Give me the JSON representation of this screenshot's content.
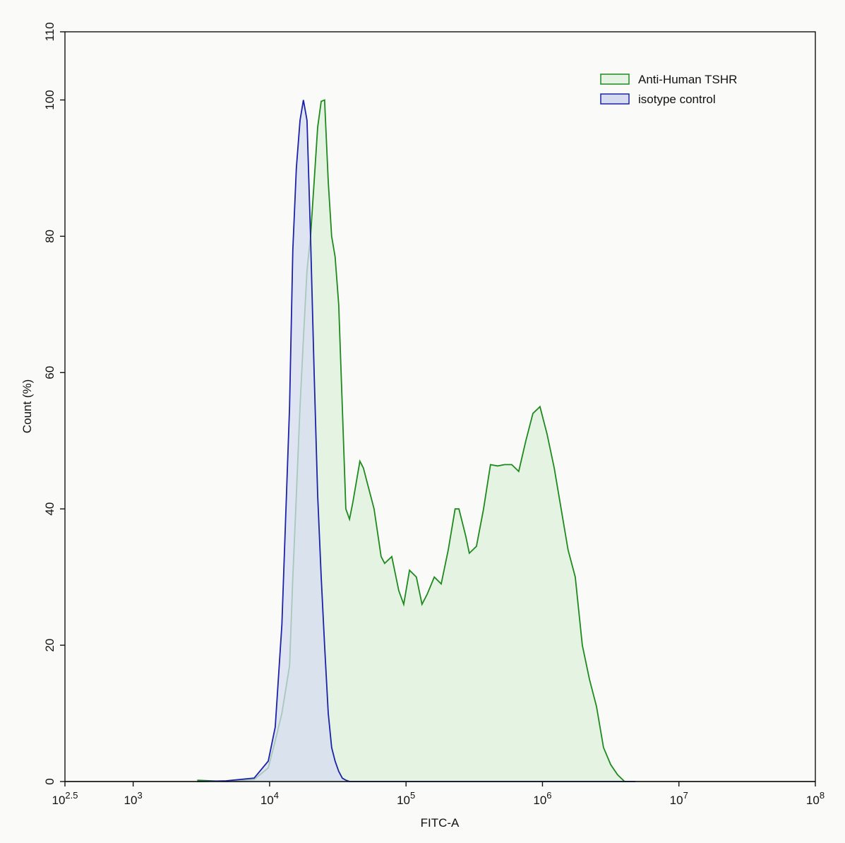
{
  "chart_data": {
    "type": "histogram-overlay",
    "x_label": "FITC-A",
    "y_label": "Count  (%)",
    "xscale": "log",
    "xlim": [
      316.23,
      100000000
    ],
    "xticks": [
      {
        "value": 316.23,
        "label": "10",
        "sup": "2.5"
      },
      {
        "value": 1000,
        "label": "10",
        "sup": "3"
      },
      {
        "value": 10000,
        "label": "10",
        "sup": "4"
      },
      {
        "value": 100000,
        "label": "10",
        "sup": "5"
      },
      {
        "value": 1000000,
        "label": "10",
        "sup": "6"
      },
      {
        "value": 10000000,
        "label": "10",
        "sup": "7"
      },
      {
        "value": 100000000,
        "label": "10",
        "sup": "8"
      }
    ],
    "ylim": [
      0,
      110
    ],
    "yticks": [
      0,
      20,
      40,
      60,
      80,
      100,
      110
    ],
    "legend": "top-right",
    "x": [
      2950,
      4800,
      7700,
      9770,
      11000,
      12300,
      14000,
      14800,
      15700,
      16700,
      17700,
      18800,
      19950,
      21200,
      22500,
      23900,
      25300,
      26900,
      28500,
      30200,
      32100,
      34100,
      36200,
      38500,
      40800,
      45900,
      48700,
      51700,
      58300,
      65700,
      69700,
      78600,
      88500,
      96200,
      106000,
      119000,
      131000,
      143000,
      161000,
      181000,
      204000,
      229000,
      244000,
      274000,
      291000,
      328000,
      370000,
      416000,
      469000,
      528000,
      595000,
      670000,
      755000,
      851000,
      959000,
      1080000,
      1220000,
      1370000,
      1540000,
      1740000,
      1960000,
      2210000,
      2490000,
      2800000,
      3160000,
      3550000,
      4000000,
      4790000
    ],
    "series": [
      {
        "name": "Anti-Human TSHR",
        "color": "#1e8a1e",
        "fill": "#e4f3e2",
        "values": [
          0.2,
          0,
          0.3,
          2,
          6,
          10,
          17,
          30,
          42,
          55,
          65,
          75,
          80,
          88,
          96,
          99.8,
          100,
          88,
          80,
          77,
          70,
          55,
          40,
          38.5,
          41,
          47,
          46,
          44,
          40,
          33,
          32,
          33,
          28,
          26,
          31,
          30,
          26,
          27.5,
          30,
          29,
          34,
          40,
          40,
          36,
          33.5,
          34.5,
          40,
          46.5,
          46.3,
          46.5,
          46.5,
          45.5,
          50,
          54,
          55,
          51,
          46,
          40,
          34,
          30,
          20,
          15,
          11,
          5,
          2.5,
          1,
          0,
          0
        ]
      },
      {
        "name": "isotype control",
        "color": "#1c22a8",
        "fill": "#d6dcf0",
        "values": [
          0,
          0.1,
          0.5,
          3,
          8,
          23,
          55,
          78,
          90,
          97,
          100,
          97,
          80,
          60,
          42,
          30,
          20,
          10,
          5,
          3,
          1.5,
          0.5,
          0.2,
          0,
          0,
          0,
          0,
          0,
          0,
          0,
          0,
          0,
          0,
          0,
          0,
          0,
          0,
          0,
          0,
          0,
          0,
          0,
          0,
          0,
          0,
          0,
          0,
          0,
          0,
          0,
          0,
          0,
          0,
          0,
          0,
          0,
          0,
          0,
          0,
          0,
          0,
          0,
          0,
          0,
          0,
          0,
          0,
          0
        ]
      }
    ]
  }
}
